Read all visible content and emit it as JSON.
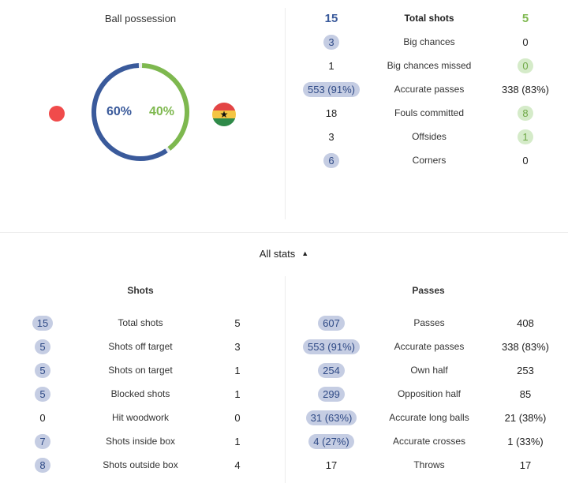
{
  "possession": {
    "title": "Ball possession",
    "home_pct": "60%",
    "away_pct": "40%",
    "home_value": 60,
    "away_value": 40,
    "home_color": "#3a5a9b",
    "away_color": "#7eb84f"
  },
  "teams": {
    "home_flag": "japan-flag-icon",
    "away_flag": "ghana-flag-icon"
  },
  "summary": [
    {
      "home": "15",
      "label": "Total shots",
      "away": "5",
      "highlight": "header"
    },
    {
      "home": "3",
      "label": "Big chances",
      "away": "0",
      "highlight": "home"
    },
    {
      "home": "1",
      "label": "Big chances missed",
      "away": "0",
      "highlight": "away"
    },
    {
      "home": "553 (91%)",
      "label": "Accurate passes",
      "away": "338 (83%)",
      "highlight": "home"
    },
    {
      "home": "18",
      "label": "Fouls committed",
      "away": "8",
      "highlight": "away"
    },
    {
      "home": "3",
      "label": "Offsides",
      "away": "1",
      "highlight": "away"
    },
    {
      "home": "6",
      "label": "Corners",
      "away": "0",
      "highlight": "home"
    }
  ],
  "toggle": {
    "label": "All stats"
  },
  "shots": {
    "title": "Shots",
    "rows": [
      {
        "home": "15",
        "label": "Total shots",
        "away": "5",
        "highlight": "home"
      },
      {
        "home": "5",
        "label": "Shots off target",
        "away": "3",
        "highlight": "home"
      },
      {
        "home": "5",
        "label": "Shots on target",
        "away": "1",
        "highlight": "home"
      },
      {
        "home": "5",
        "label": "Blocked shots",
        "away": "1",
        "highlight": "home"
      },
      {
        "home": "0",
        "label": "Hit woodwork",
        "away": "0",
        "highlight": "none"
      },
      {
        "home": "7",
        "label": "Shots inside box",
        "away": "1",
        "highlight": "home"
      },
      {
        "home": "8",
        "label": "Shots outside box",
        "away": "4",
        "highlight": "home"
      }
    ]
  },
  "passes": {
    "title": "Passes",
    "rows": [
      {
        "home": "607",
        "label": "Passes",
        "away": "408",
        "highlight": "home"
      },
      {
        "home": "553 (91%)",
        "label": "Accurate passes",
        "away": "338 (83%)",
        "highlight": "home"
      },
      {
        "home": "254",
        "label": "Own half",
        "away": "253",
        "highlight": "home"
      },
      {
        "home": "299",
        "label": "Opposition half",
        "away": "85",
        "highlight": "home"
      },
      {
        "home": "31 (63%)",
        "label": "Accurate long balls",
        "away": "21 (38%)",
        "highlight": "home"
      },
      {
        "home": "4 (27%)",
        "label": "Accurate crosses",
        "away": "1 (33%)",
        "highlight": "home"
      },
      {
        "home": "17",
        "label": "Throws",
        "away": "17",
        "highlight": "none"
      }
    ]
  }
}
